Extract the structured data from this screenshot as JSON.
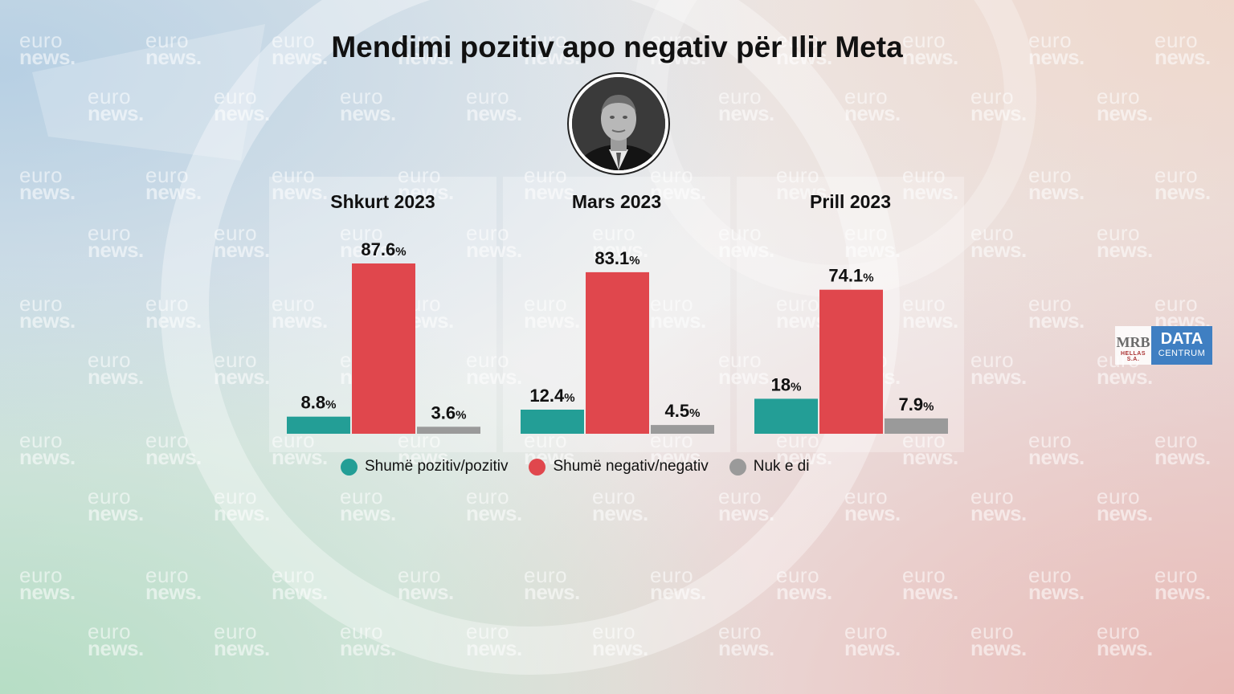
{
  "title": "Mendimi pozitiv apo negativ për Ilir Meta",
  "watermark": {
    "line1": "euro",
    "line2": "news."
  },
  "logo": {
    "mrb": "MRB",
    "mrb_sub": "HELLAS S.A.",
    "data": "DATA",
    "centrum": "CENTRUM"
  },
  "colors": {
    "positive": "#239e96",
    "negative": "#e0474d",
    "dont_know": "#9a9a9a"
  },
  "legend": [
    {
      "label": "Shumë pozitiv/pozitiv",
      "color": "#239e96"
    },
    {
      "label": "Shumë negativ/negativ",
      "color": "#e0474d"
    },
    {
      "label": "Nuk e di",
      "color": "#9a9a9a"
    }
  ],
  "chart_data": {
    "type": "bar",
    "title": "Mendimi pozitiv apo negativ për Ilir Meta",
    "categories": [
      "Shkurt 2023",
      "Mars 2023",
      "Prill 2023"
    ],
    "series": [
      {
        "name": "Shumë pozitiv/pozitiv",
        "values": [
          8.8,
          12.4,
          18
        ],
        "labels": [
          "8.8",
          "12.4",
          "18"
        ]
      },
      {
        "name": "Shumë negativ/negativ",
        "values": [
          87.6,
          83.1,
          74.1
        ],
        "labels": [
          "87.6",
          "83.1",
          "74.1"
        ]
      },
      {
        "name": "Nuk e di",
        "values": [
          3.6,
          4.5,
          7.9
        ],
        "labels": [
          "3.6",
          "4.5",
          "7.9"
        ]
      }
    ],
    "unit": "%",
    "ylim": [
      0,
      100
    ],
    "grid": false,
    "legend_position": "bottom"
  }
}
